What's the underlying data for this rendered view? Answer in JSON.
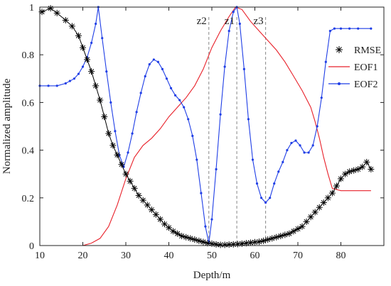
{
  "chart_data": {
    "type": "line",
    "title": "",
    "xlabel": "Depth/m",
    "ylabel": "Normalized amplitude",
    "xlim": [
      10,
      90
    ],
    "ylim": [
      0,
      1
    ],
    "xticks": [
      "10",
      "20",
      "30",
      "40",
      "50",
      "60",
      "70",
      "80"
    ],
    "yticks": [
      "0",
      "0.2",
      "0.4",
      "0.6",
      "0.8",
      "1"
    ],
    "grid": false,
    "legend": "right",
    "colors": {
      "RMSE": "#000000",
      "EOF1": "#e8212a",
      "EOF2": "#1f3ee6",
      "marker_line": "#888888",
      "axes": "#222222"
    },
    "series": [
      {
        "name": "RMSE",
        "marker": "asterisk",
        "x": [
          10.5,
          12.5,
          14,
          16,
          17.5,
          19,
          20,
          21,
          22,
          23,
          24,
          25,
          26,
          27,
          28,
          29,
          30,
          31,
          32,
          33,
          34,
          35,
          36,
          37,
          38,
          39,
          40,
          41,
          42,
          43,
          44,
          45,
          46,
          47,
          48,
          49,
          50,
          51,
          52,
          53,
          54,
          55,
          56,
          57,
          58,
          59,
          60,
          61,
          62,
          63,
          64,
          65,
          66,
          67,
          68,
          69,
          70,
          71,
          72,
          73,
          74,
          75,
          76,
          77,
          78,
          79,
          80,
          81,
          82,
          83,
          84,
          85,
          86,
          87
        ],
        "y": [
          0.98,
          0.995,
          0.975,
          0.945,
          0.92,
          0.88,
          0.83,
          0.78,
          0.73,
          0.67,
          0.61,
          0.54,
          0.47,
          0.42,
          0.38,
          0.34,
          0.3,
          0.27,
          0.24,
          0.21,
          0.19,
          0.17,
          0.15,
          0.13,
          0.11,
          0.09,
          0.075,
          0.06,
          0.05,
          0.04,
          0.035,
          0.03,
          0.025,
          0.02,
          0.015,
          0.01,
          0.008,
          0.005,
          0.003,
          0.003,
          0.004,
          0.005,
          0.006,
          0.008,
          0.01,
          0.012,
          0.014,
          0.016,
          0.02,
          0.025,
          0.03,
          0.035,
          0.04,
          0.045,
          0.05,
          0.06,
          0.07,
          0.08,
          0.1,
          0.12,
          0.14,
          0.16,
          0.18,
          0.2,
          0.22,
          0.25,
          0.28,
          0.3,
          0.31,
          0.315,
          0.32,
          0.33,
          0.35,
          0.32
        ]
      },
      {
        "name": "EOF1",
        "marker": "none",
        "x": [
          10,
          15,
          20,
          22,
          24,
          26,
          28,
          30,
          32,
          34,
          36,
          38,
          40,
          42,
          44,
          46,
          48,
          50,
          52,
          54,
          55.5,
          57,
          59,
          61,
          63,
          65,
          67,
          69,
          71,
          73,
          74,
          75,
          76,
          77,
          78,
          80,
          82,
          84,
          87
        ],
        "y": [
          0,
          0,
          0,
          0.01,
          0.03,
          0.08,
          0.17,
          0.28,
          0.37,
          0.42,
          0.45,
          0.49,
          0.54,
          0.58,
          0.62,
          0.67,
          0.74,
          0.83,
          0.9,
          0.96,
          1.0,
          0.99,
          0.94,
          0.9,
          0.86,
          0.82,
          0.77,
          0.71,
          0.65,
          0.58,
          0.52,
          0.45,
          0.37,
          0.3,
          0.24,
          0.23,
          0.23,
          0.23,
          0.23
        ]
      },
      {
        "name": "EOF2",
        "marker": "dot",
        "x": [
          10,
          12,
          14,
          16,
          17,
          18,
          19,
          20,
          21,
          22,
          23,
          23.6,
          24.5,
          25.5,
          26.5,
          27.5,
          28.5,
          29.5,
          30.5,
          31.5,
          32.5,
          33.5,
          34.5,
          35.5,
          36.5,
          37.5,
          38.5,
          39.5,
          40.5,
          41.5,
          42.5,
          43.5,
          44.5,
          45.5,
          46.5,
          47.5,
          48.5,
          49.3,
          50,
          51,
          52,
          53,
          54,
          55,
          55.8,
          56.5,
          57.5,
          58.5,
          59.5,
          60.5,
          61.5,
          62.5,
          63.5,
          64.5,
          65.5,
          66.5,
          67.5,
          68.5,
          69.5,
          70.5,
          71.5,
          72.5,
          73.5,
          74.5,
          75.5,
          76.5,
          77.5,
          78.5,
          80,
          82,
          84,
          87
        ],
        "y": [
          0.67,
          0.67,
          0.67,
          0.68,
          0.69,
          0.7,
          0.72,
          0.75,
          0.79,
          0.85,
          0.93,
          1.0,
          0.87,
          0.73,
          0.6,
          0.48,
          0.38,
          0.33,
          0.39,
          0.47,
          0.56,
          0.64,
          0.71,
          0.76,
          0.78,
          0.77,
          0.74,
          0.7,
          0.66,
          0.63,
          0.61,
          0.58,
          0.53,
          0.46,
          0.36,
          0.22,
          0.08,
          0.01,
          0.11,
          0.32,
          0.55,
          0.75,
          0.9,
          0.98,
          1.0,
          0.93,
          0.74,
          0.53,
          0.36,
          0.26,
          0.2,
          0.18,
          0.2,
          0.26,
          0.31,
          0.35,
          0.4,
          0.43,
          0.44,
          0.42,
          0.39,
          0.39,
          0.42,
          0.5,
          0.62,
          0.77,
          0.9,
          0.91,
          0.91,
          0.91,
          0.91,
          0.91
        ]
      }
    ],
    "annotations": [
      {
        "label": "z2",
        "x": 49.3
      },
      {
        "label": "z1",
        "x": 55.8
      },
      {
        "label": "z3",
        "x": 62.5
      }
    ]
  }
}
